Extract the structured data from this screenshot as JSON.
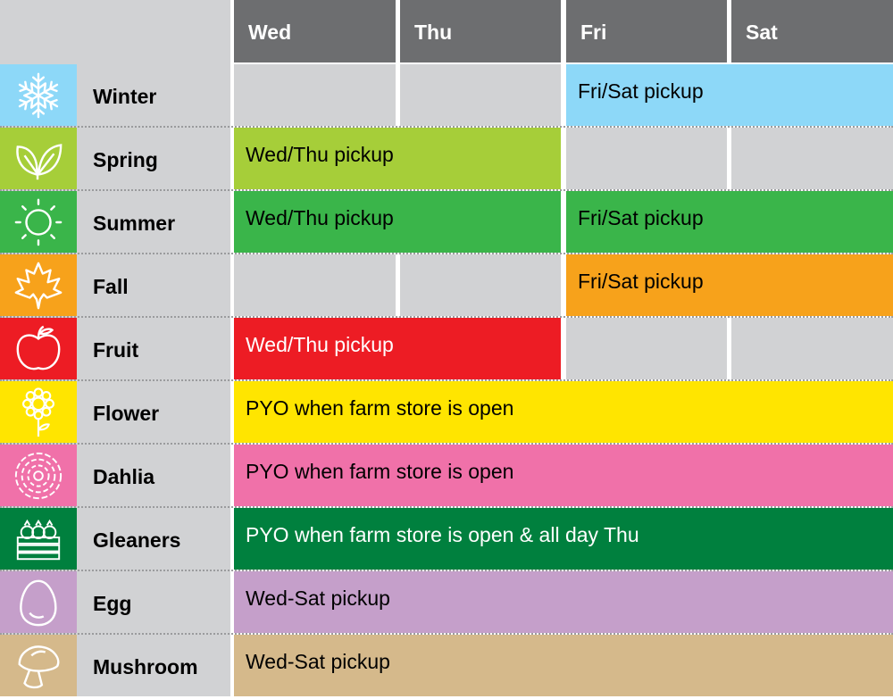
{
  "days": [
    "Wed",
    "Thu",
    "Fri",
    "Sat"
  ],
  "header_color": "#6d6e70",
  "empty_cell_color": "#d1d2d4",
  "rows": [
    {
      "label": "Winter",
      "icon": "snowflake-icon",
      "color": "#8dd8f8",
      "text_color": "#000000",
      "bars": [
        {
          "text": "Fri/Sat pickup",
          "start": 2,
          "span": 2
        }
      ]
    },
    {
      "label": "Spring",
      "icon": "leaves-icon",
      "color": "#a6ce39",
      "text_color": "#000000",
      "bars": [
        {
          "text": "Wed/Thu pickup",
          "start": 0,
          "span": 2
        }
      ]
    },
    {
      "label": "Summer",
      "icon": "sun-icon",
      "color": "#3ab54a",
      "text_color": "#000000",
      "bars": [
        {
          "text": "Wed/Thu pickup",
          "start": 0,
          "span": 2
        },
        {
          "text": "Fri/Sat pickup",
          "start": 2,
          "span": 2
        }
      ]
    },
    {
      "label": "Fall",
      "icon": "maple-leaf-icon",
      "color": "#f7a21b",
      "text_color": "#000000",
      "bars": [
        {
          "text": "Fri/Sat pickup",
          "start": 2,
          "span": 2
        }
      ]
    },
    {
      "label": "Fruit",
      "icon": "apple-icon",
      "color": "#ed1c24",
      "text_color": "#ffffff",
      "bars": [
        {
          "text": "Wed/Thu pickup",
          "start": 0,
          "span": 2
        }
      ]
    },
    {
      "label": "Flower",
      "icon": "sunflower-icon",
      "color": "#ffe500",
      "text_color": "#000000",
      "bars": [
        {
          "text": "PYO when farm store is open",
          "start": 0,
          "span": 4
        }
      ]
    },
    {
      "label": "Dahlia",
      "icon": "dahlia-icon",
      "color": "#f071a9",
      "text_color": "#000000",
      "bars": [
        {
          "text": "PYO when farm store is open",
          "start": 0,
          "span": 4
        }
      ]
    },
    {
      "label": "Gleaners",
      "icon": "vegetable-crate-icon",
      "color": "#00803e",
      "text_color": "#ffffff",
      "bars": [
        {
          "text": "PYO when farm store is open & all day Thu",
          "start": 0,
          "span": 4
        }
      ]
    },
    {
      "label": "Egg",
      "icon": "egg-icon",
      "color": "#c59fca",
      "text_color": "#000000",
      "bars": [
        {
          "text": "Wed-Sat pickup",
          "start": 0,
          "span": 4
        }
      ]
    },
    {
      "label": "Mushroom",
      "icon": "mushroom-icon",
      "color": "#d5b98b",
      "text_color": "#000000",
      "bars": [
        {
          "text": "Wed-Sat pickup",
          "start": 0,
          "span": 4
        }
      ]
    }
  ]
}
